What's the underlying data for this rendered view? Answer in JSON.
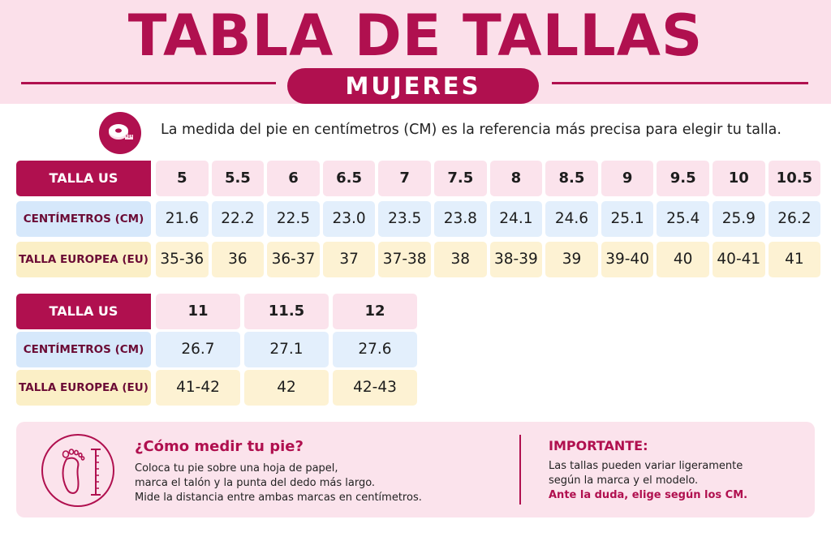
{
  "header": {
    "title": "TABLA DE TALLAS",
    "subtitle": "MUJERES"
  },
  "intro": {
    "icon": "measuring-tape-icon",
    "text": "La medida del pie en centímetros (CM) es la referencia más precisa para elegir tu talla."
  },
  "table1": {
    "labels": {
      "us": "TALLA US",
      "cm": "CENTÍMETROS (CM)",
      "eu": "TALLA EUROPEA (EU)"
    },
    "us": [
      "5",
      "5.5",
      "6",
      "6.5",
      "7",
      "7.5",
      "8",
      "8.5",
      "9",
      "9.5",
      "10",
      "10.5"
    ],
    "cm": [
      "21.6",
      "22.2",
      "22.5",
      "23.0",
      "23.5",
      "23.8",
      "24.1",
      "24.6",
      "25.1",
      "25.4",
      "25.9",
      "26.2"
    ],
    "eu": [
      "35-36",
      "36",
      "36-37",
      "37",
      "37-38",
      "38",
      "38-39",
      "39",
      "39-40",
      "40",
      "40-41",
      "41"
    ]
  },
  "table2": {
    "labels": {
      "us": "TALLA US",
      "cm": "CENTÍMETROS (CM)",
      "eu": "TALLA EUROPEA (EU)"
    },
    "us": [
      "11",
      "11.5",
      "12"
    ],
    "cm": [
      "26.7",
      "27.1",
      "27.6"
    ],
    "eu": [
      "41-42",
      "42",
      "42-43"
    ]
  },
  "how_to": {
    "icon": "foot-ruler-icon",
    "title": "¿Cómo medir tu pie?",
    "lines": [
      "Coloca tu pie sobre una hoja de papel,",
      "marca el talón y la punta del dedo más largo.",
      "Mide la distancia entre ambas marcas en centímetros."
    ]
  },
  "important": {
    "title": "IMPORTANTE:",
    "lines": [
      "Las tallas pueden variar ligeramente",
      "según la marca y el modelo."
    ],
    "emphasis": "Ante la duda, elige según los CM."
  },
  "colors": {
    "brand": "#b0104f",
    "header_band": "#fbe0ea",
    "row_blue": "#e3effc",
    "row_yellow": "#fdf2d3"
  }
}
